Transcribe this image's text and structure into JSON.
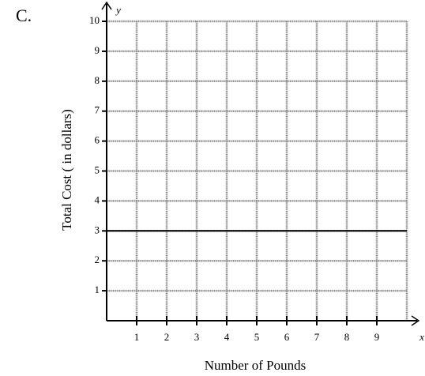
{
  "chart_data": {
    "type": "line",
    "label": "C.",
    "x_axis_label": "Number of Pounds",
    "y_axis_label": "Total Cost ( in dollars)",
    "x_symbol": "x",
    "y_symbol": "y",
    "x": [
      0,
      10
    ],
    "values": [
      3,
      3
    ],
    "color": "#000000",
    "xlim": [
      0,
      10
    ],
    "ylim": [
      0,
      10
    ],
    "xticks": [
      1,
      2,
      3,
      4,
      5,
      6,
      7,
      8,
      9
    ],
    "yticks": [
      1,
      2,
      3,
      4,
      5,
      6,
      7,
      8,
      9,
      10
    ],
    "grid": true
  }
}
